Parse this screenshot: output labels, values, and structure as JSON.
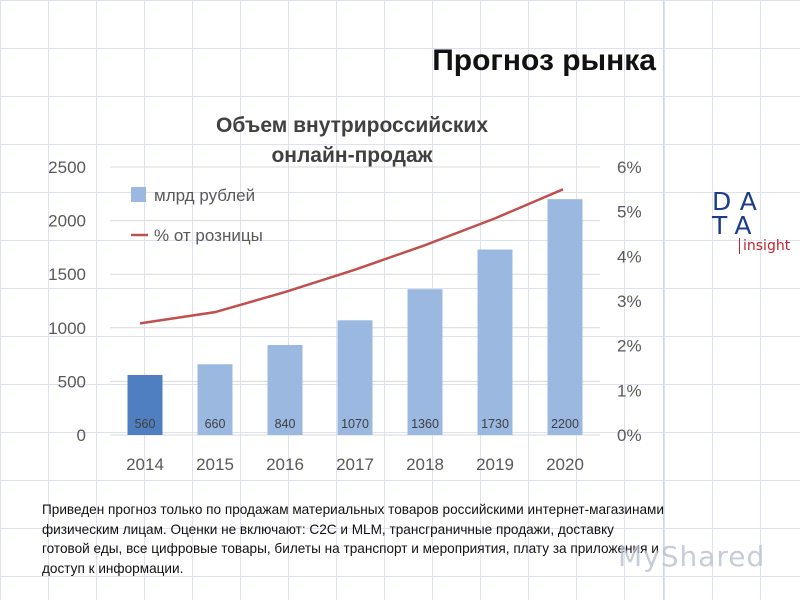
{
  "header": {
    "title": "Прогноз рынка"
  },
  "logo": {
    "line1": "DA",
    "line2": "TA",
    "line3": "insight"
  },
  "note": "Приведен прогноз только по продажам материальных товаров российскими интернет-магазинами физическим лицам. Оценки не включают: C2C и MLM, трансграничные продажи, доставку готовой еды, все цифровые товары, билеты на транспорт и мероприятия, плату за приложения и доступ к информации.",
  "watermark": "MyShared",
  "colors": {
    "bar": "#9bb8e0",
    "bar_highlight": "#4f7fc0",
    "line": "#c0504d",
    "grid": "#d9d9d9",
    "text": "#595959",
    "label": "#404040",
    "title": "#404040"
  },
  "chart_data": {
    "type": "bar",
    "title": "Объем внутрироссийских онлайн-продаж",
    "title_lines": [
      "Объем внутрироссийских",
      "онлайн-продаж"
    ],
    "categories": [
      "2014",
      "2015",
      "2016",
      "2017",
      "2018",
      "2019",
      "2020"
    ],
    "y_ticks": [
      "0",
      "500",
      "1000",
      "1500",
      "2000",
      "2500"
    ],
    "y2_ticks": [
      "0%",
      "1%",
      "2%",
      "3%",
      "4%",
      "5%",
      "6%"
    ],
    "ylim": [
      0,
      2500
    ],
    "y2lim": [
      0,
      6
    ],
    "grid": true,
    "legend_position": "top-left",
    "series": [
      {
        "name": "млрд рублей",
        "type": "bar",
        "axis": "left",
        "values": [
          560,
          660,
          840,
          1070,
          1360,
          1730,
          2200
        ],
        "labels": [
          "560",
          "660",
          "840",
          "1070",
          "1360",
          "1730",
          "2200"
        ]
      },
      {
        "name": "% от розницы",
        "type": "line",
        "axis": "right",
        "values": [
          2.5,
          2.75,
          3.2,
          3.7,
          4.25,
          4.85,
          5.5
        ]
      }
    ]
  }
}
